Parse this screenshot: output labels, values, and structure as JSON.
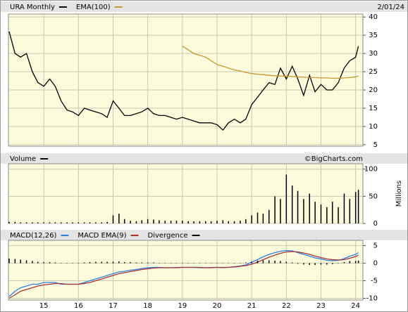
{
  "chart_data": [
    {
      "type": "line",
      "date": "2/01/24",
      "x": [
        2014,
        2014.17,
        2014.33,
        2014.5,
        2014.67,
        2014.83,
        2015,
        2015.17,
        2015.33,
        2015.5,
        2015.67,
        2015.83,
        2016,
        2016.17,
        2016.33,
        2016.5,
        2016.67,
        2016.83,
        2017,
        2017.17,
        2017.33,
        2017.5,
        2017.67,
        2017.83,
        2018,
        2018.17,
        2018.33,
        2018.5,
        2018.67,
        2018.83,
        2019,
        2019.17,
        2019.33,
        2019.5,
        2019.67,
        2019.83,
        2020,
        2020.17,
        2020.33,
        2020.5,
        2020.67,
        2020.83,
        2021,
        2021.17,
        2021.33,
        2021.5,
        2021.67,
        2021.83,
        2022,
        2022.17,
        2022.33,
        2022.5,
        2022.67,
        2022.83,
        2023,
        2023.17,
        2023.33,
        2023.5,
        2023.67,
        2023.83,
        2024,
        2024.08
      ],
      "xlim": [
        2013.98,
        2024.21
      ],
      "ylim": [
        4.6,
        40.8
      ],
      "yticks": [
        5,
        10,
        15,
        20,
        25,
        30,
        35,
        40
      ],
      "grid": true,
      "series": [
        {
          "name": "URA Monthly",
          "color": "#000000",
          "values": [
            36,
            30,
            29,
            30,
            25,
            22,
            21,
            23,
            21,
            17,
            14.5,
            14,
            13,
            15,
            14.5,
            14,
            13.5,
            12.5,
            17,
            15,
            13,
            13,
            13.5,
            14,
            15,
            13.5,
            13,
            13,
            12.5,
            12,
            12.5,
            12,
            11.5,
            11,
            11,
            11,
            10.5,
            9,
            11,
            12,
            11,
            12,
            16,
            18,
            20,
            22,
            21.5,
            26,
            23,
            26.5,
            23,
            18.5,
            24,
            19.5,
            21.5,
            20,
            20,
            22,
            26,
            28,
            29,
            32
          ]
        },
        {
          "name": "EMA(100)",
          "color": "#c89632",
          "values": [
            null,
            null,
            null,
            null,
            null,
            null,
            null,
            null,
            null,
            null,
            null,
            null,
            null,
            null,
            null,
            null,
            null,
            null,
            null,
            null,
            null,
            null,
            null,
            null,
            null,
            null,
            null,
            null,
            null,
            null,
            32,
            31,
            30,
            29.5,
            29,
            28,
            27,
            26.5,
            26,
            25.5,
            25.2,
            24.8,
            24.5,
            24.3,
            24.2,
            24,
            23.9,
            23.8,
            23.8,
            23.7,
            23.6,
            23.5,
            23.4,
            23.4,
            23.3,
            23.3,
            23.2,
            23.2,
            23.3,
            23.4,
            23.6,
            23.8
          ]
        }
      ]
    },
    {
      "type": "bar",
      "watermark": "©BigCharts.com",
      "y_label": "Millions",
      "x": [
        2014,
        2014.17,
        2014.33,
        2014.5,
        2014.67,
        2014.83,
        2015,
        2015.17,
        2015.33,
        2015.5,
        2015.67,
        2015.83,
        2016,
        2016.17,
        2016.33,
        2016.5,
        2016.67,
        2016.83,
        2017,
        2017.17,
        2017.33,
        2017.5,
        2017.67,
        2017.83,
        2018,
        2018.17,
        2018.33,
        2018.5,
        2018.67,
        2018.83,
        2019,
        2019.17,
        2019.33,
        2019.5,
        2019.67,
        2019.83,
        2020,
        2020.17,
        2020.33,
        2020.5,
        2020.67,
        2020.83,
        2021,
        2021.17,
        2021.33,
        2021.5,
        2021.67,
        2021.83,
        2022,
        2022.17,
        2022.33,
        2022.5,
        2022.67,
        2022.83,
        2023,
        2023.17,
        2023.33,
        2023.5,
        2023.67,
        2023.83,
        2024,
        2024.08
      ],
      "xlim": [
        2013.98,
        2024.21
      ],
      "ylim": [
        0,
        110
      ],
      "yticks": [
        0,
        50,
        100
      ],
      "grid": true,
      "series": [
        {
          "name": "Volume",
          "color": "#000000",
          "values": [
            3,
            3,
            2,
            2,
            2,
            2,
            2,
            2,
            2,
            2,
            2,
            2,
            2,
            2,
            2,
            2,
            2,
            3,
            15,
            18,
            8,
            5,
            4,
            6,
            8,
            7,
            6,
            5,
            5,
            5,
            5,
            4,
            4,
            4,
            4,
            4,
            5,
            6,
            4,
            4,
            5,
            8,
            15,
            20,
            18,
            25,
            50,
            45,
            90,
            70,
            60,
            45,
            55,
            40,
            35,
            30,
            40,
            30,
            55,
            45,
            58,
            62
          ]
        }
      ]
    },
    {
      "type": "line",
      "x": [
        2014,
        2014.17,
        2014.33,
        2014.5,
        2014.67,
        2014.83,
        2015,
        2015.17,
        2015.33,
        2015.5,
        2015.67,
        2015.83,
        2016,
        2016.17,
        2016.33,
        2016.5,
        2016.67,
        2016.83,
        2017,
        2017.17,
        2017.33,
        2017.5,
        2017.67,
        2017.83,
        2018,
        2018.17,
        2018.33,
        2018.5,
        2018.67,
        2018.83,
        2019,
        2019.17,
        2019.33,
        2019.5,
        2019.67,
        2019.83,
        2020,
        2020.17,
        2020.33,
        2020.5,
        2020.67,
        2020.83,
        2021,
        2021.17,
        2021.33,
        2021.5,
        2021.67,
        2021.83,
        2022,
        2022.17,
        2022.33,
        2022.5,
        2022.67,
        2022.83,
        2023,
        2023.17,
        2023.33,
        2023.5,
        2023.67,
        2023.83,
        2024,
        2024.08
      ],
      "xlim": [
        2013.98,
        2024.21
      ],
      "ylim": [
        -10.5,
        6.5
      ],
      "yticks": [
        -10,
        -5,
        0,
        5
      ],
      "grid": true,
      "xticks": [
        {
          "value": 2015,
          "label": "15"
        },
        {
          "value": 2016,
          "label": "16"
        },
        {
          "value": 2017,
          "label": "17"
        },
        {
          "value": 2018,
          "label": "18"
        },
        {
          "value": 2019,
          "label": "19"
        },
        {
          "value": 2020,
          "label": "20"
        },
        {
          "value": 2021,
          "label": "21"
        },
        {
          "value": 2022,
          "label": "22"
        },
        {
          "value": 2023,
          "label": "23"
        },
        {
          "value": 2024,
          "label": "24"
        }
      ],
      "series": [
        {
          "name": "MACD(12,26)",
          "color": "#2f7de1",
          "style": "line",
          "values": [
            -9.5,
            -8,
            -7,
            -6.5,
            -6,
            -6,
            -5.5,
            -5.5,
            -5.5,
            -6,
            -6,
            -6,
            -6,
            -5.5,
            -5,
            -4.5,
            -4,
            -3.5,
            -3,
            -2.5,
            -2.3,
            -2,
            -1.8,
            -1.5,
            -1.3,
            -1.2,
            -1.2,
            -1.3,
            -1.3,
            -1.2,
            -1.2,
            -1.2,
            -1.2,
            -1.3,
            -1.3,
            -1.2,
            -1.2,
            -1.3,
            -1.2,
            -1,
            -0.8,
            -0.5,
            0.3,
            1,
            1.8,
            2.5,
            3,
            3.4,
            3.6,
            3.5,
            3,
            2.5,
            2,
            1.5,
            1.2,
            0.8,
            0.7,
            0.8,
            1.3,
            2,
            2.5,
            3
          ]
        },
        {
          "name": "MACD EMA(9)",
          "color": "#a83232",
          "style": "line",
          "values": [
            -10,
            -9,
            -8,
            -7.5,
            -7,
            -6.5,
            -6.2,
            -6,
            -5.8,
            -5.8,
            -6,
            -6,
            -6,
            -5.8,
            -5.5,
            -5,
            -4.5,
            -4,
            -3.5,
            -3,
            -2.7,
            -2.4,
            -2.1,
            -1.8,
            -1.6,
            -1.4,
            -1.3,
            -1.3,
            -1.3,
            -1.3,
            -1.2,
            -1.2,
            -1.2,
            -1.2,
            -1.3,
            -1.3,
            -1.2,
            -1.2,
            -1.2,
            -1.1,
            -0.9,
            -0.7,
            -0.3,
            0.3,
            1,
            1.7,
            2.3,
            2.8,
            3.2,
            3.3,
            3.2,
            2.9,
            2.5,
            2,
            1.6,
            1.2,
            1,
            0.9,
            1,
            1.4,
            1.9,
            2.3
          ]
        },
        {
          "name": "Divergence",
          "color": "#000000",
          "style": "bar",
          "values": [
            1.3,
            1.2,
            1,
            0.8,
            0.6,
            0.4,
            0.3,
            0.3,
            0.2,
            0.1,
            0,
            0,
            0,
            0.2,
            0.3,
            0.4,
            0.4,
            0.4,
            0.4,
            0.5,
            0.3,
            0.3,
            0.2,
            0.2,
            0.2,
            0.2,
            0.1,
            0,
            0,
            0.1,
            0,
            0,
            0,
            -0.1,
            0,
            0.1,
            0,
            -0.1,
            0,
            0.1,
            0.1,
            0.2,
            0.4,
            0.7,
            0.8,
            0.8,
            0.7,
            0.6,
            0.4,
            0.2,
            -0.2,
            -0.4,
            -0.5,
            -0.5,
            -0.4,
            -0.4,
            -0.3,
            -0.1,
            0.3,
            0.6,
            0.6,
            0.7
          ]
        }
      ]
    }
  ]
}
